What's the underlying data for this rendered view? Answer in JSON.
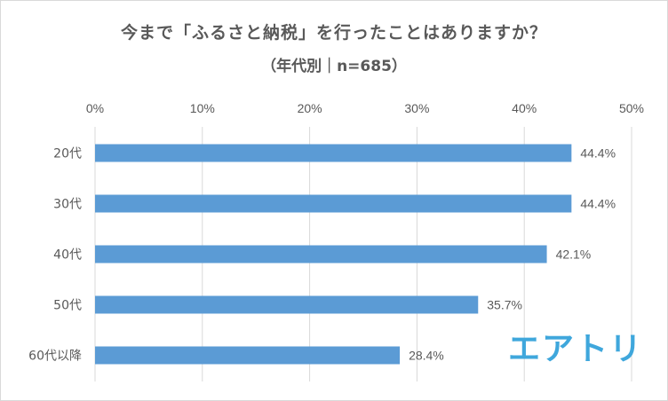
{
  "chart_data": {
    "type": "bar",
    "orientation": "horizontal",
    "title": "今まで「ふるさと納税」を行ったことはありますか？",
    "subtitle": "（年代別｜n=685）",
    "categories": [
      "20代",
      "30代",
      "40代",
      "50代",
      "60代以降"
    ],
    "values": [
      44.4,
      44.4,
      42.1,
      35.7,
      28.4
    ],
    "value_labels": [
      "44.4%",
      "44.4%",
      "42.1%",
      "35.7%",
      "28.4%"
    ],
    "xlim": [
      0,
      50
    ],
    "ticks": [
      0,
      10,
      20,
      30,
      40,
      50
    ],
    "tick_labels": [
      "0%",
      "10%",
      "20%",
      "30%",
      "40%",
      "50%"
    ],
    "xlabel": "",
    "ylabel": "",
    "grid": true,
    "bar_color": "#5b9bd5"
  },
  "logo_text": "エアトリ",
  "logo_color": "#3fa7dc"
}
